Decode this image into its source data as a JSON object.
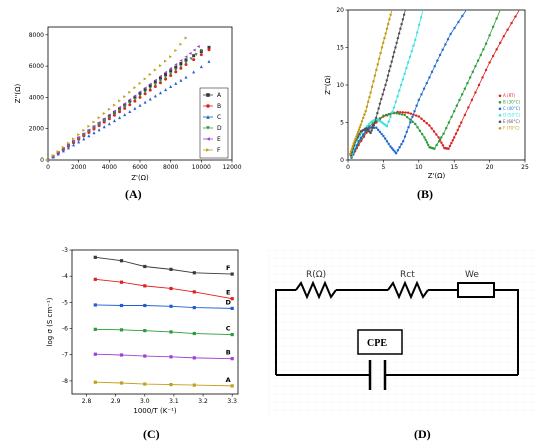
{
  "captions": {
    "a": "(A)",
    "b": "(B)",
    "c": "(C)",
    "d": "(D)"
  },
  "chart_data": [
    {
      "panel": "A",
      "type": "scatter",
      "xlabel": "Z'(Ω)",
      "ylabel": "Z''(Ω)",
      "xlim": [
        0,
        12000
      ],
      "ylim": [
        0,
        8500
      ],
      "xticks": [
        "0",
        "2000",
        "4000",
        "6000",
        "8000",
        "10000",
        "12000"
      ],
      "yticks": [
        "0",
        "2000",
        "4000",
        "6000",
        "8000"
      ],
      "legend_position": "right",
      "series": [
        {
          "name": "A",
          "color": "#3a3a3a",
          "marker": "square",
          "x": [
            0,
            1000,
            2000,
            3000,
            4000,
            5000,
            6000,
            7000,
            8000,
            9000,
            10500
          ],
          "y": [
            0,
            700,
            1400,
            2100,
            2800,
            3500,
            4250,
            5000,
            5700,
            6400,
            7200
          ]
        },
        {
          "name": "B",
          "color": "#e02020",
          "marker": "circle",
          "x": [
            0,
            1000,
            2000,
            3000,
            4000,
            5000,
            6000,
            7000,
            8000,
            9000,
            10500
          ],
          "y": [
            0,
            660,
            1320,
            1980,
            2640,
            3300,
            4000,
            4700,
            5400,
            6100,
            7050
          ]
        },
        {
          "name": "C",
          "color": "#1f5fd0",
          "marker": "triangle-up",
          "x": [
            0,
            1000,
            2000,
            3000,
            4000,
            5000,
            6000,
            7000,
            8000,
            9000,
            10500
          ],
          "y": [
            0,
            580,
            1160,
            1740,
            2320,
            2900,
            3500,
            4100,
            4700,
            5300,
            6300
          ]
        },
        {
          "name": "D",
          "color": "#2a9a3a",
          "marker": "triangle-down",
          "x": [
            0,
            1000,
            2000,
            3000,
            4000,
            5000,
            6000,
            7000,
            8000,
            9000,
            10000
          ],
          "y": [
            0,
            680,
            1360,
            2040,
            2720,
            3400,
            4100,
            4800,
            5500,
            6200,
            7000
          ]
        },
        {
          "name": "E",
          "color": "#a040d0",
          "marker": "triangle-left",
          "x": [
            0,
            1000,
            2000,
            3000,
            4000,
            5000,
            6000,
            7000,
            8000,
            9000,
            9800
          ],
          "y": [
            0,
            720,
            1440,
            2160,
            2880,
            3600,
            4350,
            5100,
            5850,
            6600,
            7250
          ]
        },
        {
          "name": "F",
          "color": "#c0a020",
          "marker": "triangle-right",
          "x": [
            0,
            1000,
            2000,
            3000,
            4000,
            5000,
            6000,
            7000,
            8000,
            9000
          ],
          "y": [
            0,
            810,
            1620,
            2430,
            3240,
            4050,
            4900,
            5750,
            6600,
            7800
          ]
        }
      ]
    },
    {
      "panel": "B",
      "type": "scatter",
      "xlabel": "Z'(Ω)",
      "ylabel": "Z''(Ω)",
      "xlim": [
        0,
        25
      ],
      "ylim": [
        0,
        20
      ],
      "xticks": [
        "0",
        "5",
        "10",
        "15",
        "20",
        "25"
      ],
      "yticks": [
        "0",
        "5",
        "10",
        "15",
        "20"
      ],
      "legend_position": "right",
      "series": [
        {
          "name": "A (RT)",
          "color": "#dd2020",
          "x": [
            0.5,
            1.5,
            3,
            5,
            7,
            8.5,
            10,
            11.5,
            12.8,
            13.6,
            14.2,
            15,
            16,
            18,
            20,
            22,
            24.2
          ],
          "y": [
            0.3,
            2,
            4.2,
            5.8,
            6.4,
            6.3,
            5.8,
            4.6,
            3,
            1.6,
            1.5,
            3,
            5,
            9,
            13,
            16.5,
            20
          ]
        },
        {
          "name": "B (30°C)",
          "color": "#2a9a3a",
          "x": [
            0.5,
            1.5,
            3,
            5,
            6.5,
            8,
            9.5,
            10.8,
            11.5,
            12.2,
            13.5,
            15,
            16.5,
            18,
            19.5,
            21.5
          ],
          "y": [
            0.3,
            2.3,
            4.5,
            5.9,
            6.3,
            6,
            4.8,
            3,
            1.7,
            1.5,
            3.5,
            6.5,
            9.5,
            12.5,
            15.5,
            20
          ]
        },
        {
          "name": "C (40°C)",
          "color": "#1f6ad0",
          "x": [
            0.5,
            1.5,
            2.8,
            4,
            5,
            6,
            6.8,
            7.8,
            8.8,
            10,
            11.5,
            13,
            14.5,
            16.7
          ],
          "y": [
            0.4,
            2.5,
            4.3,
            4.3,
            3.2,
            1.8,
            0.9,
            2.5,
            5,
            8,
            11,
            14,
            16.8,
            20
          ]
        },
        {
          "name": "D (50°C)",
          "color": "#3fe0e0",
          "x": [
            0.5,
            1.2,
            2.2,
            3.2,
            4,
            4.8,
            5.5,
            6.5,
            7.5,
            8.5,
            9.5,
            10.6
          ],
          "y": [
            0.5,
            2.6,
            4,
            5,
            5.5,
            5,
            4.5,
            7,
            10,
            13,
            16,
            20
          ]
        },
        {
          "name": "E (60°C)",
          "color": "#505050",
          "x": [
            0.4,
            1,
            1.8,
            2.6,
            3.2,
            3.8,
            4.5,
            5.3,
            6,
            6.7,
            7.4,
            8.1
          ],
          "y": [
            0.6,
            2.4,
            3.8,
            4.2,
            3.6,
            5,
            7.5,
            10,
            12.5,
            15,
            17.5,
            20
          ]
        },
        {
          "name": "F (70°C)",
          "color": "#c09a10",
          "x": [
            0.3,
            0.8,
            1.3,
            1.8,
            2.5,
            3.2,
            4,
            4.8,
            5.5,
            6.2
          ],
          "y": [
            0.8,
            2.2,
            3.4,
            4.7,
            6.5,
            9,
            12,
            15,
            17.5,
            20
          ]
        }
      ]
    },
    {
      "panel": "C",
      "type": "line",
      "xlabel": "1000/T (K⁻¹)",
      "ylabel": "log σ (S cm⁻¹)",
      "xlim": [
        2.75,
        3.32
      ],
      "ylim": [
        -8.5,
        -3.0
      ],
      "xticks": [
        "2.8",
        "2.9",
        "3.0",
        "3.1",
        "3.2",
        "3.3"
      ],
      "yticks": [
        "-3",
        "-4",
        "-5",
        "-6",
        "-7",
        "-8"
      ],
      "x": [
        2.83,
        2.92,
        3.0,
        3.09,
        3.17,
        3.3
      ],
      "series": [
        {
          "name": "F",
          "color": "#3a3a3a",
          "y": [
            -3.28,
            -3.41,
            -3.63,
            -3.74,
            -3.87,
            -3.92
          ]
        },
        {
          "name": "E",
          "color": "#e02020",
          "y": [
            -4.12,
            -4.23,
            -4.37,
            -4.47,
            -4.6,
            -4.86
          ]
        },
        {
          "name": "D",
          "color": "#1f5fd0",
          "y": [
            -5.1,
            -5.12,
            -5.12,
            -5.15,
            -5.2,
            -5.23
          ]
        },
        {
          "name": "C",
          "color": "#2a9a3a",
          "y": [
            -6.03,
            -6.05,
            -6.08,
            -6.13,
            -6.19,
            -6.23
          ]
        },
        {
          "name": "B",
          "color": "#a040d0",
          "y": [
            -6.98,
            -7.01,
            -7.05,
            -7.08,
            -7.12,
            -7.15
          ]
        },
        {
          "name": "A",
          "color": "#c0a020",
          "y": [
            -8.05,
            -8.08,
            -8.12,
            -8.14,
            -8.16,
            -8.19
          ]
        }
      ]
    }
  ],
  "circuit": {
    "r_label": "R(Ω)",
    "rct_label": "Rct",
    "we_label": "We",
    "cpe_label": "CPE"
  }
}
